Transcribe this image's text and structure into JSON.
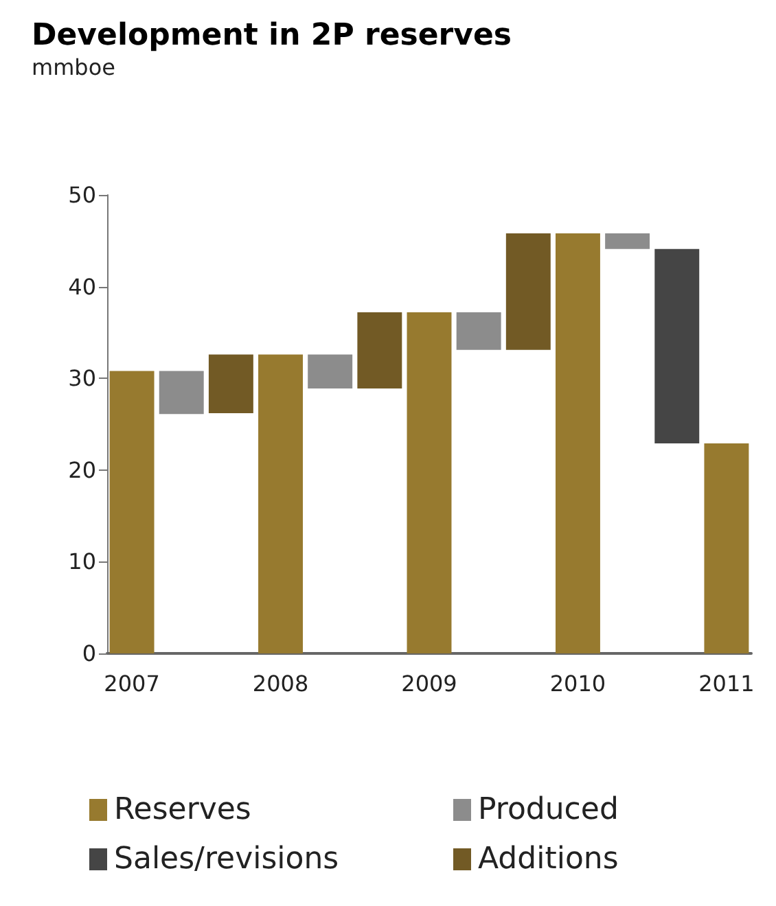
{
  "chart_data": {
    "type": "bar",
    "title": "Development in 2P reserves",
    "subtitle": "mmboe",
    "categories": [
      "2007",
      null,
      null,
      "2008",
      null,
      null,
      "2009",
      null,
      null,
      "2010",
      null,
      null,
      "2011"
    ],
    "series": [
      {
        "name": "Reserves",
        "color": "#977a2f",
        "values": [
          30.8,
          null,
          null,
          32.6,
          null,
          null,
          37.2,
          null,
          null,
          45.8,
          null,
          null,
          22.9
        ],
        "base": [
          0,
          null,
          null,
          0,
          null,
          null,
          0,
          null,
          null,
          0,
          null,
          null,
          0
        ]
      },
      {
        "name": "Produced",
        "color": "#8c8c8c",
        "values": [
          null,
          4.7,
          null,
          null,
          3.7,
          null,
          null,
          4.1,
          null,
          null,
          1.7,
          null,
          null
        ],
        "base": [
          null,
          26.1,
          null,
          null,
          28.9,
          null,
          null,
          33.1,
          null,
          null,
          44.1,
          null,
          null
        ]
      },
      {
        "name": "Sales/revisions",
        "color": "#454545",
        "values": [
          null,
          null,
          null,
          null,
          null,
          null,
          null,
          null,
          null,
          null,
          null,
          21.2,
          null
        ],
        "base": [
          null,
          null,
          null,
          null,
          null,
          null,
          null,
          null,
          null,
          null,
          null,
          22.9,
          null
        ]
      },
      {
        "name": "Additions",
        "color": "#725a25",
        "values": [
          null,
          null,
          6.4,
          null,
          null,
          8.3,
          null,
          null,
          12.7,
          null,
          null,
          null,
          null
        ],
        "base": [
          null,
          null,
          26.2,
          null,
          null,
          28.9,
          null,
          null,
          33.1,
          null,
          null,
          null,
          null
        ]
      }
    ],
    "ylim": [
      0,
      50
    ],
    "yticks": [
      0,
      10,
      20,
      30,
      40,
      50
    ],
    "grid": false,
    "legend": "bottom"
  }
}
